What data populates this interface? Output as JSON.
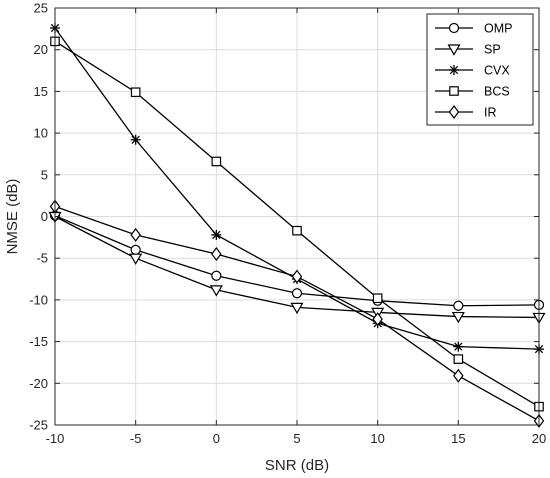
{
  "chart_data": {
    "type": "line",
    "title": "",
    "xlabel": "SNR (dB)",
    "ylabel": "NMSE (dB)",
    "xlim": [
      -10,
      20
    ],
    "ylim": [
      -25,
      25
    ],
    "xticks": [
      -10,
      -5,
      0,
      5,
      10,
      15,
      20
    ],
    "yticks": [
      -25,
      -20,
      -15,
      -10,
      -5,
      0,
      5,
      10,
      15,
      20,
      25
    ],
    "grid": true,
    "legend_position": "top-right",
    "x": [
      -10,
      -5,
      0,
      5,
      10,
      15,
      20
    ],
    "series": [
      {
        "name": "OMP",
        "marker": "circle",
        "values": [
          0.1,
          -4.0,
          -7.1,
          -9.2,
          -10.1,
          -10.7,
          -10.6
        ]
      },
      {
        "name": "SP",
        "marker": "triangle-down",
        "values": [
          0.0,
          -5.0,
          -8.8,
          -10.9,
          -11.5,
          -12.0,
          -12.1
        ]
      },
      {
        "name": "CVX",
        "marker": "asterisk",
        "values": [
          22.6,
          9.2,
          -2.2,
          -7.5,
          -12.8,
          -15.6,
          -15.9
        ]
      },
      {
        "name": "BCS",
        "marker": "square",
        "values": [
          21.0,
          14.9,
          6.6,
          -1.7,
          -9.8,
          -17.1,
          -22.8
        ]
      },
      {
        "name": "IR",
        "marker": "diamond",
        "values": [
          1.2,
          -2.2,
          -4.5,
          -7.2,
          -12.3,
          -19.1,
          -24.5
        ]
      }
    ],
    "colors": {
      "line": "#000000",
      "grid": "#dcdcdc",
      "axis": "#262626",
      "background": "#ffffff"
    }
  }
}
